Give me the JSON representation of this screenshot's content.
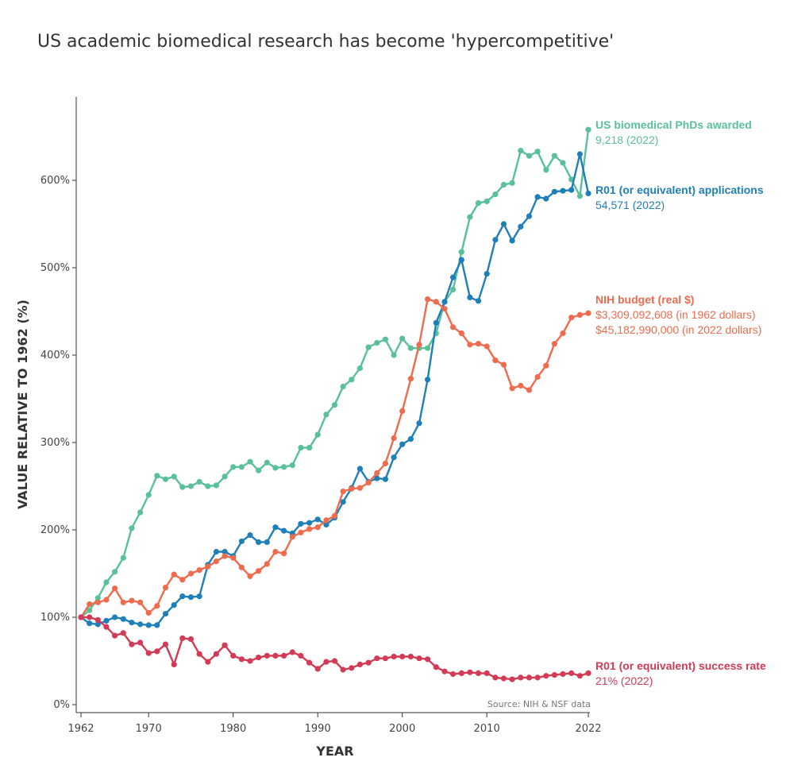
{
  "title": "US academic biomedical research has become 'hypercompetitive'",
  "source": "Source: NIH & NSF data",
  "chart_data": {
    "type": "line",
    "title": "US academic biomedical research has become 'hypercompetitive'",
    "xlabel": "YEAR",
    "ylabel": "VALUE RELATIVE TO 1962 (%)",
    "xlim": [
      1962,
      2022
    ],
    "ylim": [
      0,
      700
    ],
    "x_ticks": [
      "1962",
      "1970",
      "1980",
      "1990",
      "2000",
      "2010",
      "2022"
    ],
    "y_ticks": [
      "0%",
      "100%",
      "200%",
      "300%",
      "400%",
      "500%",
      "600%"
    ],
    "grid": false,
    "x": [
      1962,
      1963,
      1964,
      1965,
      1966,
      1967,
      1968,
      1969,
      1970,
      1971,
      1972,
      1973,
      1974,
      1975,
      1976,
      1977,
      1978,
      1979,
      1980,
      1981,
      1982,
      1983,
      1984,
      1985,
      1986,
      1987,
      1988,
      1989,
      1990,
      1991,
      1992,
      1993,
      1994,
      1995,
      1996,
      1997,
      1998,
      1999,
      2000,
      2001,
      2002,
      2003,
      2004,
      2005,
      2006,
      2007,
      2008,
      2009,
      2010,
      2011,
      2012,
      2013,
      2014,
      2015,
      2016,
      2017,
      2018,
      2019,
      2020,
      2021,
      2022
    ],
    "series": [
      {
        "name": "US biomedical PhDs awarded",
        "label_sub": "9,218 (2022)",
        "color": "#59c09a",
        "values": [
          100,
          108,
          122,
          140,
          152,
          168,
          202,
          220,
          240,
          262,
          258,
          261,
          249,
          250,
          255,
          250,
          251,
          261,
          272,
          272,
          278,
          268,
          277,
          271,
          272,
          274,
          294,
          294,
          309,
          332,
          343,
          364,
          372,
          385,
          409,
          414,
          418,
          400,
          419,
          408,
          408,
          408,
          425,
          461,
          475,
          518,
          558,
          574,
          576,
          584,
          595,
          597,
          634,
          628,
          633,
          612,
          628,
          620,
          601,
          582,
          658
        ]
      },
      {
        "name": "R01 (or equivalent) applications",
        "label_sub": "54,571 (2022)",
        "color": "#1f7fb8",
        "values": [
          100,
          93,
          92,
          96,
          100,
          98,
          94,
          92,
          91,
          91,
          104,
          114,
          124,
          123,
          124,
          160,
          175,
          175,
          170,
          187,
          194,
          186,
          186,
          203,
          199,
          196,
          207,
          208,
          212,
          206,
          214,
          232,
          248,
          270,
          255,
          259,
          258,
          283,
          298,
          304,
          322,
          372,
          437,
          461,
          489,
          509,
          466,
          462,
          493,
          532,
          550,
          531,
          547,
          559,
          581,
          579,
          587,
          588,
          589,
          630,
          585
        ]
      },
      {
        "name": "NIH budget (real $)",
        "label_sub": "$3,309,092,608 (in 1962 dollars)",
        "label_sub2": "$45,182,990,000 (in 2022 dollars)",
        "color": "#ee6b4d",
        "values": [
          100,
          115,
          117,
          120,
          133,
          117,
          119,
          117,
          105,
          113,
          134,
          149,
          143,
          150,
          154,
          158,
          164,
          170,
          168,
          157,
          147,
          153,
          161,
          175,
          173,
          192,
          197,
          201,
          203,
          211,
          216,
          244,
          247,
          248,
          254,
          265,
          276,
          305,
          336,
          373,
          412,
          464,
          461,
          453,
          432,
          425,
          412,
          413,
          410,
          394,
          389,
          362,
          365,
          360,
          375,
          388,
          413,
          425,
          443,
          446,
          448
        ]
      },
      {
        "name": "R01 (or equivalent) success rate",
        "label_sub": "21% (2022)",
        "color": "#d33a55",
        "values": [
          100,
          100,
          97,
          89,
          79,
          82,
          69,
          71,
          59,
          61,
          69,
          46,
          76,
          75,
          58,
          49,
          58,
          68,
          56,
          52,
          50,
          54,
          56,
          56,
          56,
          60,
          56,
          48,
          41,
          49,
          50,
          40,
          42,
          46,
          48,
          53,
          53,
          55,
          55,
          55,
          53,
          52,
          43,
          38,
          35,
          36,
          37,
          36,
          36,
          31,
          30,
          29,
          31,
          31,
          31,
          33,
          34,
          35,
          36,
          33,
          36
        ]
      }
    ]
  }
}
